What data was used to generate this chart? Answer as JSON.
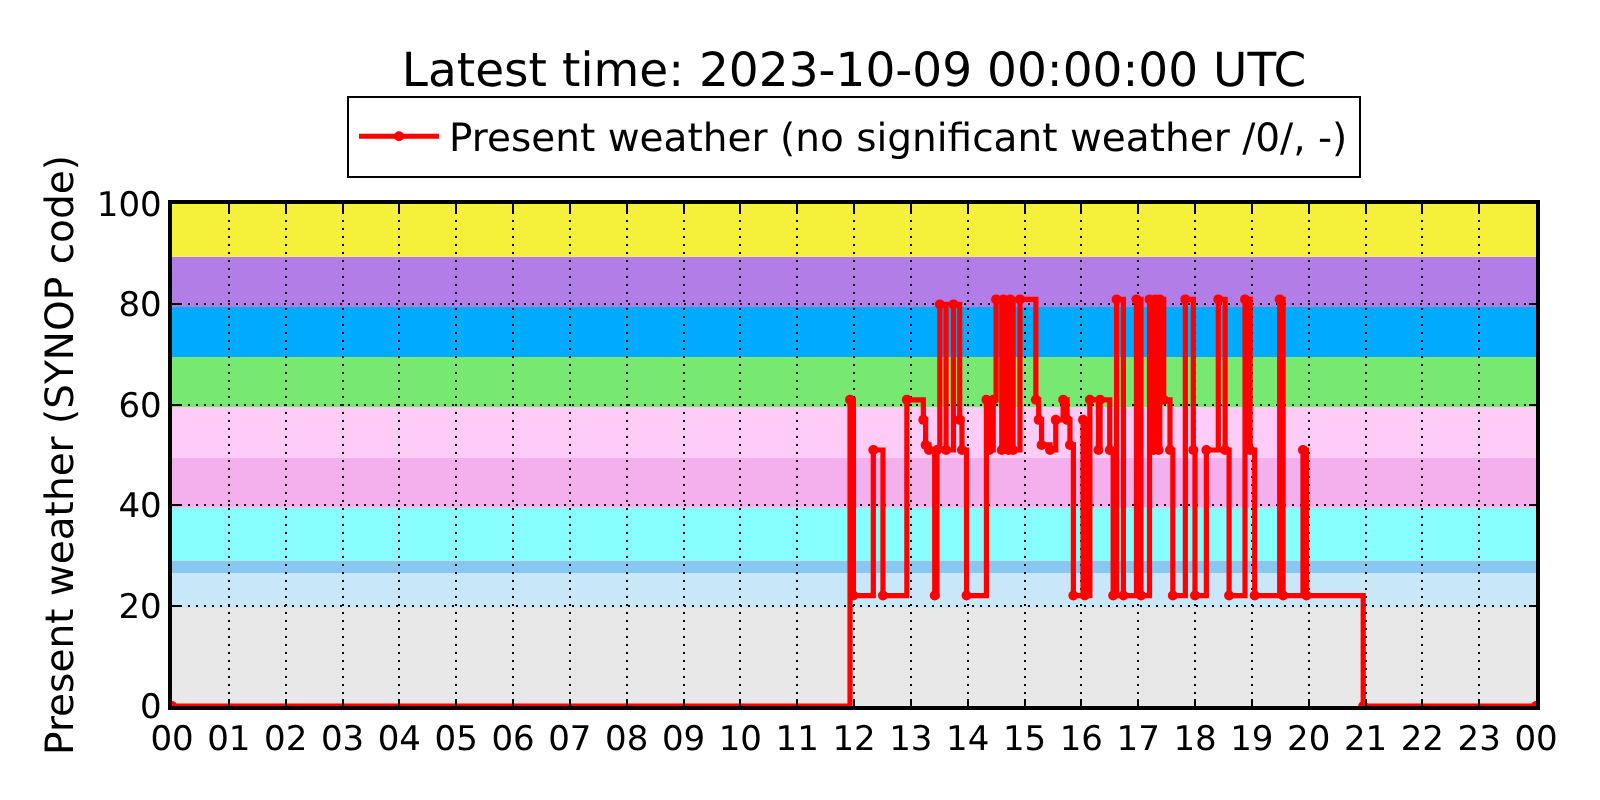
{
  "chart_data": {
    "type": "step",
    "title": "Latest time: 2023-10-09 00:00:00 UTC",
    "ylabel": "Present weather (SYNOP code)",
    "x": [
      0,
      11.93,
      11.99,
      12.34,
      12.51,
      12.93,
      13.22,
      13.26,
      13.32,
      13.42,
      13.46,
      13.51,
      13.62,
      13.75,
      13.86,
      13.9,
      13.98,
      14.33,
      14.38,
      14.45,
      14.5,
      14.6,
      14.63,
      14.72,
      14.75,
      14.8,
      14.92,
      15.2,
      15.25,
      15.3,
      15.45,
      15.55,
      15.68,
      15.75,
      15.8,
      15.86,
      16.03,
      16.06,
      16.15,
      16.3,
      16.33,
      16.5,
      16.56,
      16.62,
      16.74,
      16.97,
      17.05,
      17.2,
      17.27,
      17.3,
      17.36,
      17.38,
      17.45,
      17.56,
      17.61,
      17.83,
      17.97,
      18.0,
      18.2,
      18.41,
      18.53,
      18.6,
      18.88,
      18.97,
      19.05,
      19.49,
      19.55,
      19.9,
      19.96,
      20.96,
      24
    ],
    "series": [
      {
        "name": "Present weather (no significant weather /0/, -)",
        "color": "#ff0000",
        "values": [
          0,
          61,
          22,
          51,
          22,
          61,
          57,
          52,
          51,
          22,
          51,
          80,
          51,
          80,
          57,
          51,
          22,
          61,
          51,
          61,
          81,
          51,
          81,
          51,
          81,
          51,
          81,
          61,
          57,
          52,
          51,
          57,
          61,
          57,
          52,
          22,
          57,
          22,
          61,
          51,
          61,
          51,
          22,
          81,
          22,
          81,
          22,
          81,
          51,
          81,
          51,
          81,
          61,
          51,
          22,
          81,
          51,
          22,
          51,
          81,
          51,
          22,
          81,
          51,
          22,
          81,
          22,
          51,
          22,
          0,
          0
        ]
      }
    ],
    "xlim": [
      0,
      24
    ],
    "ylim": [
      0,
      100
    ],
    "xticks": [
      {
        "value": 0,
        "label": "00"
      },
      {
        "value": 1,
        "label": "01"
      },
      {
        "value": 2,
        "label": "02"
      },
      {
        "value": 3,
        "label": "03"
      },
      {
        "value": 4,
        "label": "04"
      },
      {
        "value": 5,
        "label": "05"
      },
      {
        "value": 6,
        "label": "06"
      },
      {
        "value": 7,
        "label": "07"
      },
      {
        "value": 8,
        "label": "08"
      },
      {
        "value": 9,
        "label": "09"
      },
      {
        "value": 10,
        "label": "10"
      },
      {
        "value": 11,
        "label": "11"
      },
      {
        "value": 12,
        "label": "12"
      },
      {
        "value": 13,
        "label": "13"
      },
      {
        "value": 14,
        "label": "14"
      },
      {
        "value": 15,
        "label": "15"
      },
      {
        "value": 16,
        "label": "16"
      },
      {
        "value": 17,
        "label": "17"
      },
      {
        "value": 18,
        "label": "18"
      },
      {
        "value": 19,
        "label": "19"
      },
      {
        "value": 20,
        "label": "20"
      },
      {
        "value": 21,
        "label": "21"
      },
      {
        "value": 22,
        "label": "22"
      },
      {
        "value": 23,
        "label": "23"
      },
      {
        "value": 24,
        "label": "00"
      }
    ],
    "yticks": [
      0,
      20,
      40,
      60,
      80,
      100
    ],
    "bands": [
      {
        "axis": "y",
        "from": 0,
        "to": 19.5,
        "color": "#e8e8e8"
      },
      {
        "axis": "y",
        "from": 19.5,
        "to": 26.5,
        "color": "#c8e8fa"
      },
      {
        "axis": "y",
        "from": 26.5,
        "to": 29,
        "color": "#88c8f0"
      },
      {
        "axis": "y",
        "from": 29,
        "to": 39.5,
        "color": "#88ffff"
      },
      {
        "axis": "y",
        "from": 39.5,
        "to": 49.5,
        "color": "#f4b0ec"
      },
      {
        "axis": "y",
        "from": 49.5,
        "to": 59.5,
        "color": "#ffccf8"
      },
      {
        "axis": "y",
        "from": 59.5,
        "to": 69.5,
        "color": "#77e870"
      },
      {
        "axis": "y",
        "from": 69.5,
        "to": 79.5,
        "color": "#00aaff"
      },
      {
        "axis": "y",
        "from": 79.5,
        "to": 89.5,
        "color": "#b37de8"
      },
      {
        "axis": "y",
        "from": 89.5,
        "to": 100,
        "color": "#f5f03a"
      }
    ],
    "grid": true,
    "legend": "top",
    "marker": "circle",
    "line_style": "solid"
  }
}
